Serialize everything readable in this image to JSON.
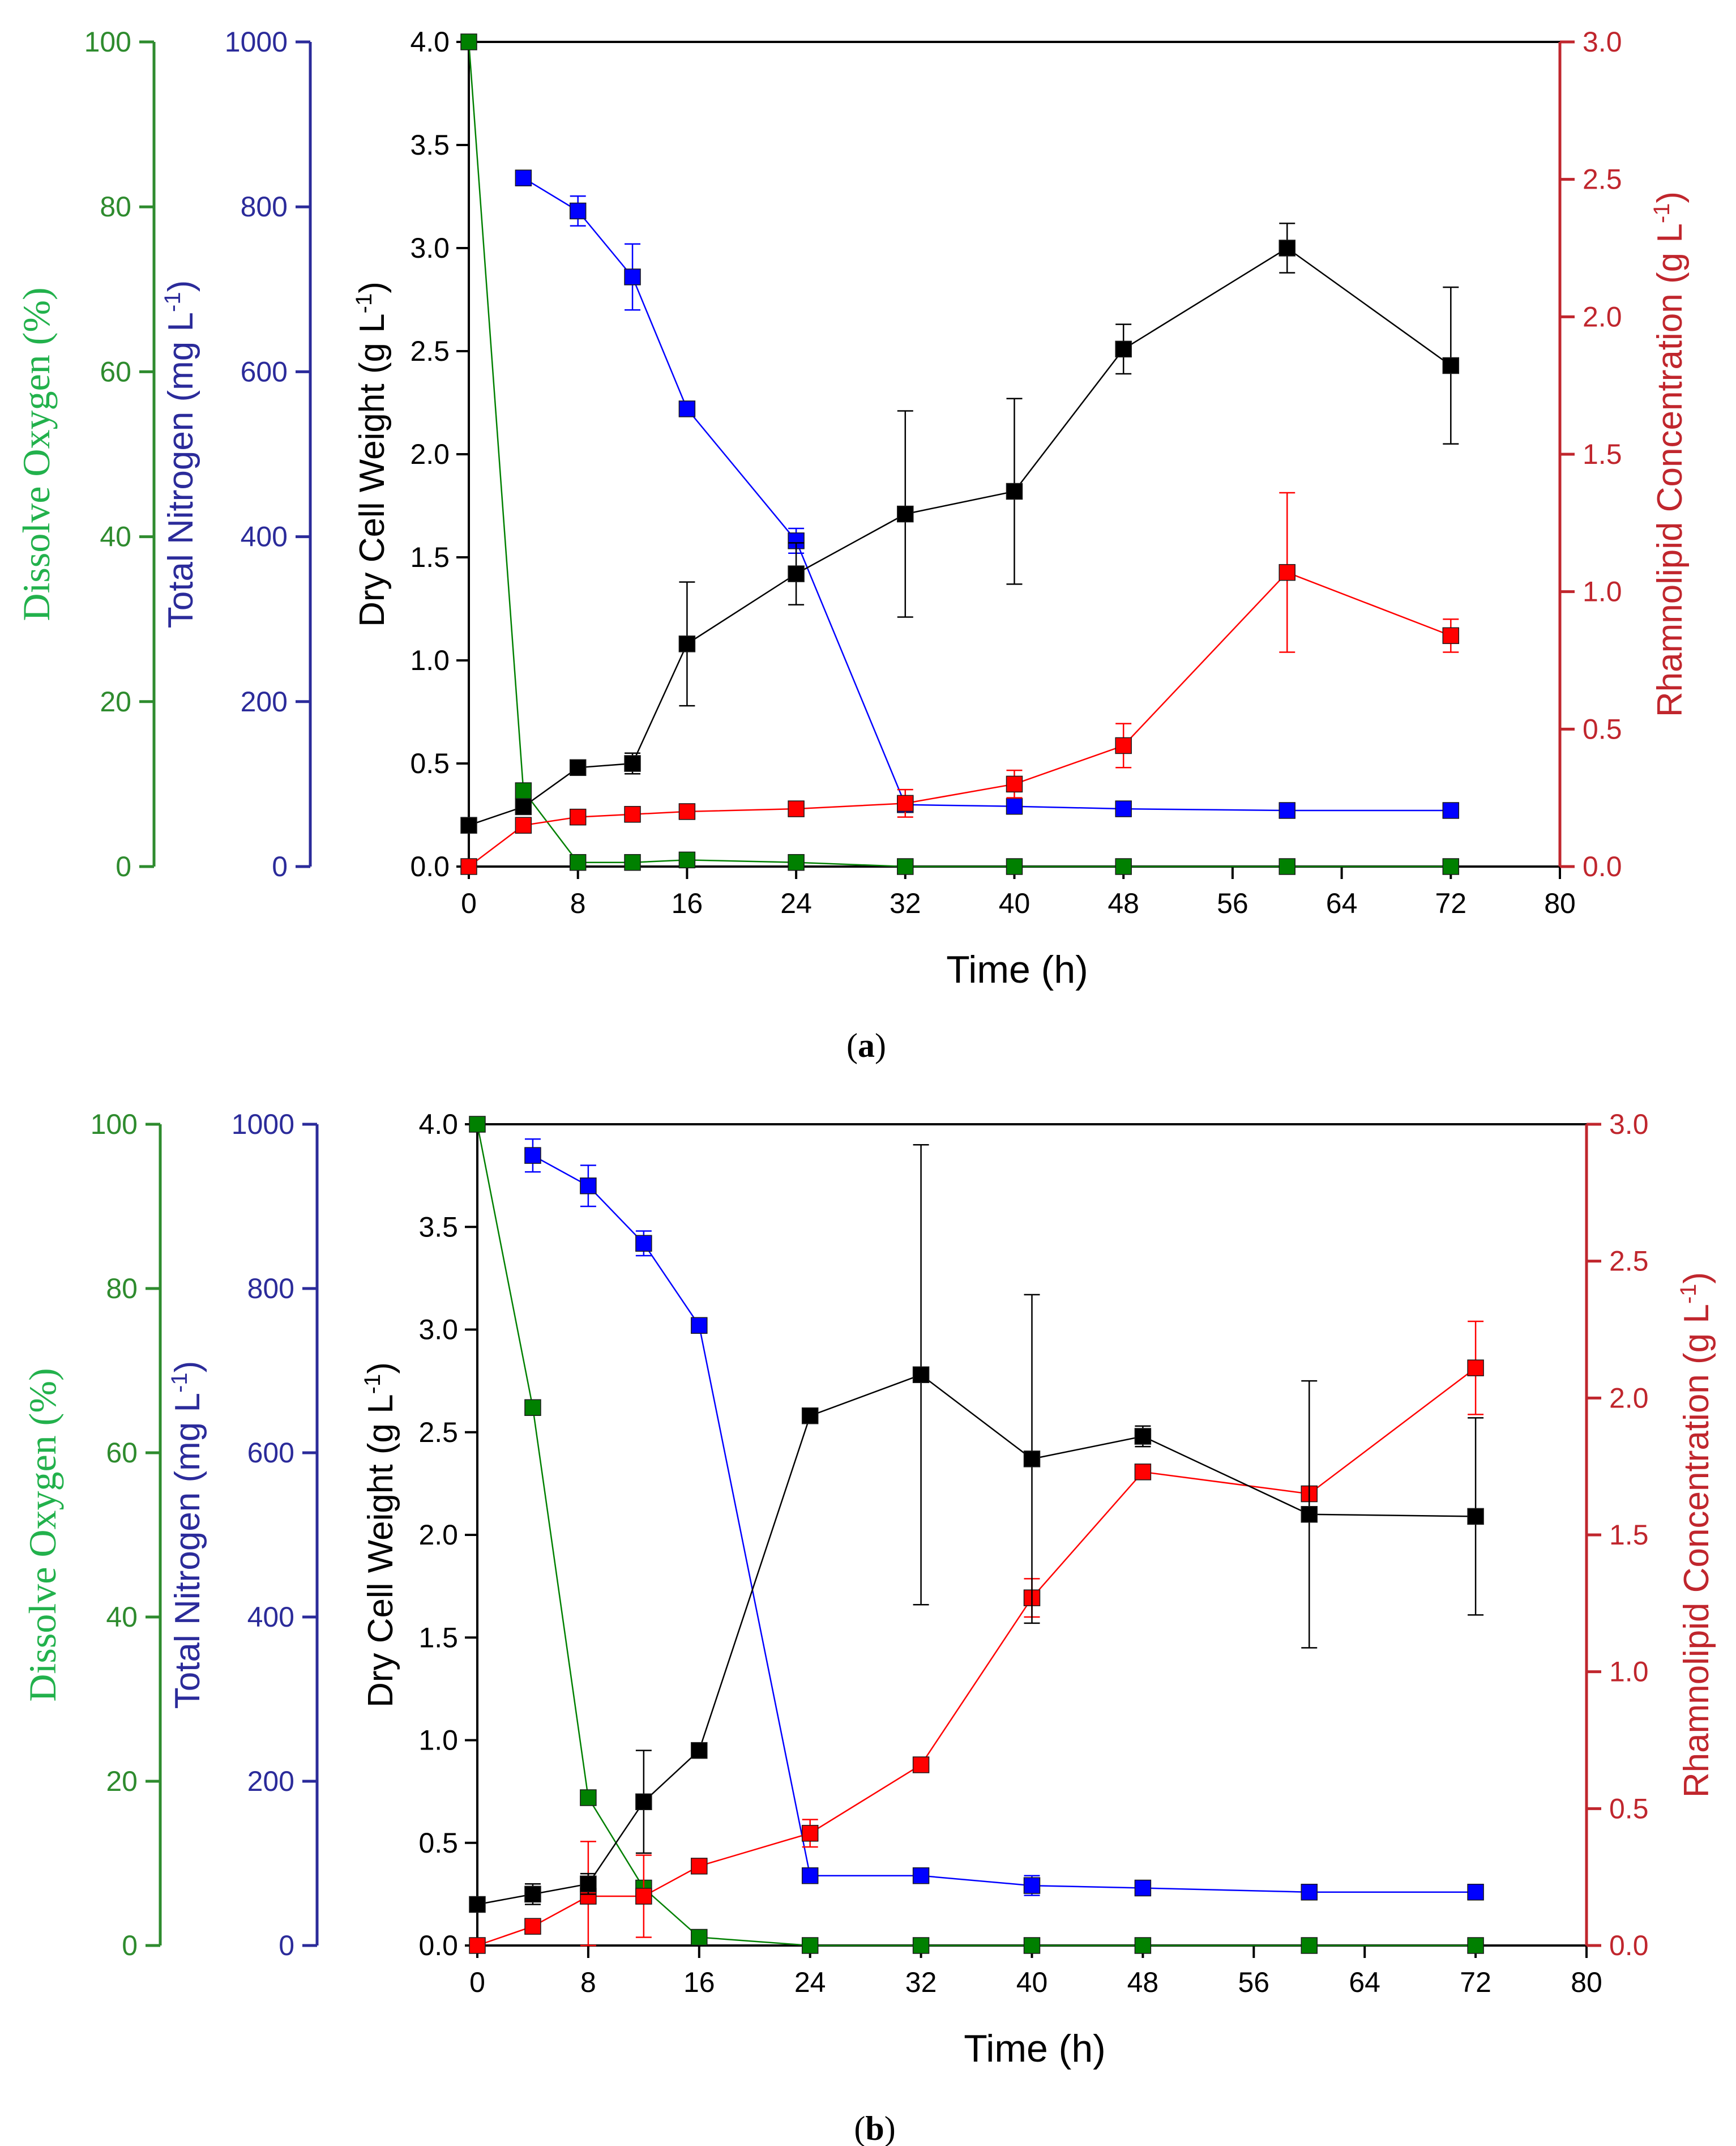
{
  "colors": {
    "dcw": "#000000",
    "nitrogen": "#0000ff",
    "oxygen": "#008000",
    "rhamnolipid": "#ff0000",
    "nitrogen_axis": "#2b2b9a",
    "oxygen_axis": "#2e8b2e",
    "oxygen_label": "#22b14c",
    "rhamno_axis": "#c0262d"
  },
  "chart_data": [
    {
      "type": "line",
      "panel_label": "a",
      "xlabel": "Time (h)",
      "xlim": [
        0,
        80
      ],
      "xticks": [
        "0",
        "8",
        "16",
        "24",
        "32",
        "40",
        "48",
        "56",
        "64",
        "72",
        "80"
      ],
      "axes": {
        "dcw": {
          "label": "Dry Cell Weight (g L",
          "label_sup": "-1",
          "label_end": ")",
          "ylim": [
            0,
            4
          ],
          "ticks": [
            "0.0",
            "0.5",
            "1.0",
            "1.5",
            "2.0",
            "2.5",
            "3.0",
            "3.5",
            "4.0"
          ]
        },
        "nitrogen": {
          "label": "Total Nitrogen (mg L",
          "label_sup": "-1",
          "label_end": ")",
          "ylim": [
            0,
            1000
          ],
          "ticks": [
            "0",
            "200",
            "400",
            "600",
            "800",
            "1000"
          ]
        },
        "oxygen": {
          "label": "Dissolve Oxygen (%)",
          "ylim": [
            0,
            100
          ],
          "ticks": [
            "0",
            "20",
            "40",
            "60",
            "80",
            "100"
          ]
        },
        "rhamnolipid": {
          "label": "Rhamnolipid Concentration (g L",
          "label_sup": "-1",
          "label_end": ")",
          "ylim": [
            0,
            3
          ],
          "ticks": [
            "0.0",
            "0.5",
            "1.0",
            "1.5",
            "2.0",
            "2.5",
            "3.0"
          ]
        }
      },
      "series": [
        {
          "name": "Dry Cell Weight",
          "axis": "dcw",
          "color": "#000000",
          "x": [
            0,
            4,
            8,
            12,
            16,
            24,
            32,
            40,
            48,
            60,
            72
          ],
          "y": [
            0.2,
            0.29,
            0.48,
            0.5,
            1.08,
            1.42,
            1.71,
            1.82,
            2.51,
            3.0,
            2.43
          ],
          "err": [
            0,
            0,
            0,
            0.05,
            0.3,
            0.15,
            0.5,
            0.45,
            0.12,
            0.12,
            0.38
          ]
        },
        {
          "name": "Total Nitrogen",
          "axis": "nitrogen",
          "color": "#0000ff",
          "x": [
            4,
            8,
            12,
            16,
            24,
            32,
            40,
            48,
            60,
            72
          ],
          "y": [
            835,
            795,
            715,
            555,
            395,
            75,
            73,
            70,
            68,
            68
          ],
          "err": [
            0,
            18,
            40,
            0,
            15,
            0,
            0,
            0,
            0,
            0
          ]
        },
        {
          "name": "Dissolve Oxygen",
          "axis": "oxygen",
          "color": "#008000",
          "x": [
            0,
            4,
            8,
            12,
            16,
            24,
            32,
            40,
            48,
            60,
            72
          ],
          "y": [
            100,
            9.2,
            0.5,
            0.5,
            0.8,
            0.5,
            0,
            0,
            0,
            0,
            0
          ],
          "err": [
            0,
            0,
            0,
            0,
            0,
            0,
            0,
            0,
            0,
            0,
            0
          ]
        },
        {
          "name": "Rhamnolipid",
          "axis": "rhamnolipid",
          "color": "#ff0000",
          "x": [
            0,
            4,
            8,
            12,
            16,
            24,
            32,
            40,
            48,
            60,
            72
          ],
          "y": [
            0,
            0.15,
            0.18,
            0.19,
            0.2,
            0.21,
            0.23,
            0.3,
            0.44,
            1.07,
            0.84
          ],
          "err": [
            0,
            0,
            0,
            0,
            0,
            0,
            0.05,
            0.05,
            0.08,
            0.29,
            0.06
          ]
        }
      ]
    },
    {
      "type": "line",
      "panel_label": "b",
      "xlabel": "Time (h)",
      "xlim": [
        0,
        80
      ],
      "xticks": [
        "0",
        "8",
        "16",
        "24",
        "32",
        "40",
        "48",
        "56",
        "64",
        "72",
        "80"
      ],
      "axes": {
        "dcw": {
          "label": "Dry Cell Weight (g L",
          "label_sup": "-1",
          "label_end": ")",
          "ylim": [
            0,
            4
          ],
          "ticks": [
            "0.0",
            "0.5",
            "1.0",
            "1.5",
            "2.0",
            "2.5",
            "3.0",
            "3.5",
            "4.0"
          ]
        },
        "nitrogen": {
          "label": "Total Nitrogen (mg L",
          "label_sup": "-1",
          "label_end": ")",
          "ylim": [
            0,
            1000
          ],
          "ticks": [
            "0",
            "200",
            "400",
            "600",
            "800",
            "1000"
          ]
        },
        "oxygen": {
          "label": "Dissolve Oxygen (%)",
          "ylim": [
            0,
            100
          ],
          "ticks": [
            "0",
            "20",
            "40",
            "60",
            "80",
            "100"
          ]
        },
        "rhamnolipid": {
          "label": "Rhamnolipid Concentration (g L",
          "label_sup": "-1",
          "label_end": ")",
          "ylim": [
            0,
            3
          ],
          "ticks": [
            "0.0",
            "0.5",
            "1.0",
            "1.5",
            "2.0",
            "2.5",
            "3.0"
          ]
        }
      },
      "series": [
        {
          "name": "Dry Cell Weight",
          "axis": "dcw",
          "color": "#000000",
          "x": [
            0,
            4,
            8,
            12,
            16,
            24,
            32,
            40,
            48,
            60,
            72
          ],
          "y": [
            0.2,
            0.25,
            0.3,
            0.7,
            0.95,
            2.58,
            2.78,
            2.37,
            2.48,
            2.1,
            2.09
          ],
          "err": [
            0,
            0.05,
            0.05,
            0.25,
            0,
            0,
            1.12,
            0.8,
            0.05,
            0.65,
            0.48
          ]
        },
        {
          "name": "Total Nitrogen",
          "axis": "nitrogen",
          "color": "#0000ff",
          "x": [
            4,
            8,
            12,
            16,
            24,
            32,
            40,
            48,
            60,
            72
          ],
          "y": [
            962,
            925,
            855,
            755,
            85,
            85,
            73,
            70,
            65,
            65
          ],
          "err": [
            20,
            25,
            15,
            0,
            0,
            0,
            12,
            0,
            0,
            0
          ]
        },
        {
          "name": "Dissolve Oxygen",
          "axis": "oxygen",
          "color": "#008000",
          "x": [
            0,
            4,
            8,
            12,
            16,
            24,
            32,
            40,
            48,
            60,
            72
          ],
          "y": [
            100,
            65.5,
            18,
            7,
            1,
            0,
            0,
            0,
            0,
            0,
            0
          ],
          "err": [
            0,
            0,
            0,
            0,
            0,
            0,
            0,
            0,
            0,
            0,
            0
          ]
        },
        {
          "name": "Rhamnolipid",
          "axis": "rhamnolipid",
          "color": "#ff0000",
          "x": [
            0,
            4,
            8,
            12,
            16,
            24,
            32,
            40,
            48,
            60,
            72
          ],
          "y": [
            0,
            0.07,
            0.18,
            0.18,
            0.29,
            0.41,
            0.66,
            1.27,
            1.73,
            1.65,
            2.11
          ],
          "err": [
            0,
            0,
            0.2,
            0.15,
            0,
            0.05,
            0,
            0.07,
            0,
            0,
            0.17
          ]
        }
      ]
    }
  ]
}
